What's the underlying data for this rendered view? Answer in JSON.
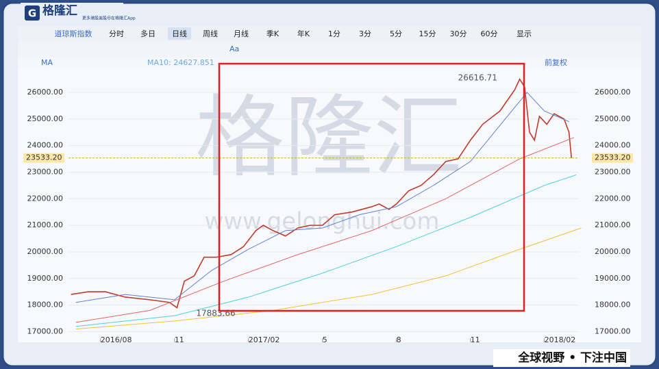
{
  "header": {
    "logo": "格隆汇",
    "tagline": "更多港股美股尽在格隆汇App"
  },
  "toolbar": {
    "tabs": [
      "道琼斯指数",
      "分时",
      "多日",
      "日线",
      "周线",
      "月线",
      "季K",
      "年K",
      "1分",
      "3分",
      "5分",
      "15分",
      "30分",
      "60分",
      "显示"
    ],
    "tools_text": "Aa",
    "indicator": "MA",
    "ma_label": "MA10: 24627.851",
    "adjust": "前复权"
  },
  "watermark": {
    "brand": "格隆汇",
    "url": "www.gelonghui.com"
  },
  "slogan": "全球视野 • 下注中国",
  "chart_data": {
    "type": "line",
    "xlim": [
      6.7,
      27.4
    ],
    "xticks": [
      {
        "value": 8,
        "label": "2016/08"
      },
      {
        "value": 11,
        "label": "11"
      },
      {
        "value": 14,
        "label": "2017/02"
      },
      {
        "value": 17,
        "label": "5"
      },
      {
        "value": 20,
        "label": "8"
      },
      {
        "value": 23,
        "label": "11"
      },
      {
        "value": 26,
        "label": "2018/02"
      }
    ],
    "ylim": [
      16600,
      26900
    ],
    "yticks": [
      {
        "value": 17000,
        "label": "17000.00"
      },
      {
        "value": 18000,
        "label": "18000.00"
      },
      {
        "value": 19000,
        "label": "19000.00"
      },
      {
        "value": 20000,
        "label": "20000.00"
      },
      {
        "value": 21000,
        "label": "21000.00"
      },
      {
        "value": 22000,
        "label": "22000.00"
      },
      {
        "value": 23000,
        "label": "23000.00"
      },
      {
        "value": 24000,
        "label": "24000.00"
      },
      {
        "value": 25000,
        "label": "25000.00"
      },
      {
        "value": 26000,
        "label": "26000.00"
      }
    ],
    "series": [
      {
        "color": "#c0392b",
        "x": [
          6.8,
          7.5,
          8.2,
          9,
          10,
          10.8,
          11.1,
          11.4,
          11.8,
          12.2,
          12.7,
          13.3,
          13.8,
          14.3,
          14.6,
          15.0,
          15.5,
          16,
          16.5,
          17,
          17.5,
          18.2,
          19,
          19.3,
          19.7,
          20,
          20.5,
          21,
          21.5,
          22,
          22.5,
          23,
          23.5,
          24.2,
          24.8,
          25.0,
          25.2,
          25.4,
          25.6,
          25.8,
          26.1,
          26.4,
          26.8,
          27.0,
          27.1
        ],
        "values": [
          18400,
          18500,
          18500,
          18300,
          18200,
          18100,
          17900,
          18900,
          19100,
          19800,
          19800,
          19900,
          20200,
          20800,
          21000,
          20800,
          20600,
          20900,
          21000,
          21000,
          21400,
          21500,
          21700,
          21800,
          21600,
          21800,
          22300,
          22500,
          22900,
          23400,
          23500,
          24200,
          24800,
          25300,
          26100,
          26500,
          26200,
          24500,
          24200,
          25100,
          24800,
          25200,
          25000,
          24500,
          23533
        ]
      },
      {
        "color": "#5b7fd6",
        "x": [
          7,
          9,
          11,
          12.5,
          14,
          15.5,
          17,
          18.5,
          20,
          21.5,
          23,
          24.5,
          25.3,
          26,
          27
        ],
        "values": [
          18100,
          18400,
          18200,
          19300,
          20100,
          20800,
          20900,
          21400,
          21700,
          22500,
          23400,
          25100,
          26000,
          25300,
          24900
        ]
      },
      {
        "color": "#e06666",
        "x": [
          7,
          10,
          13,
          16,
          19,
          22,
          25,
          27.2
        ],
        "values": [
          17350,
          17800,
          18900,
          19900,
          20800,
          22000,
          23500,
          24300
        ]
      },
      {
        "color": "#4dd0e1",
        "x": [
          7,
          11,
          14,
          17,
          20,
          23,
          26,
          27.3
        ],
        "values": [
          17200,
          17600,
          18300,
          19200,
          20200,
          21300,
          22500,
          22900
        ]
      },
      {
        "color": "#f1c232",
        "x": [
          7,
          11,
          15,
          19,
          22,
          25,
          27.5
        ],
        "values": [
          17100,
          17400,
          17800,
          18400,
          19100,
          20100,
          20900
        ]
      }
    ],
    "last_price": {
      "value": 23533.2,
      "label": "23533.20"
    },
    "annotations": [
      {
        "x": 25.0,
        "value": 26616.71,
        "label": "26616.71"
      },
      {
        "x": 11.1,
        "value": 17883.66,
        "label": "17883.66"
      }
    ]
  }
}
